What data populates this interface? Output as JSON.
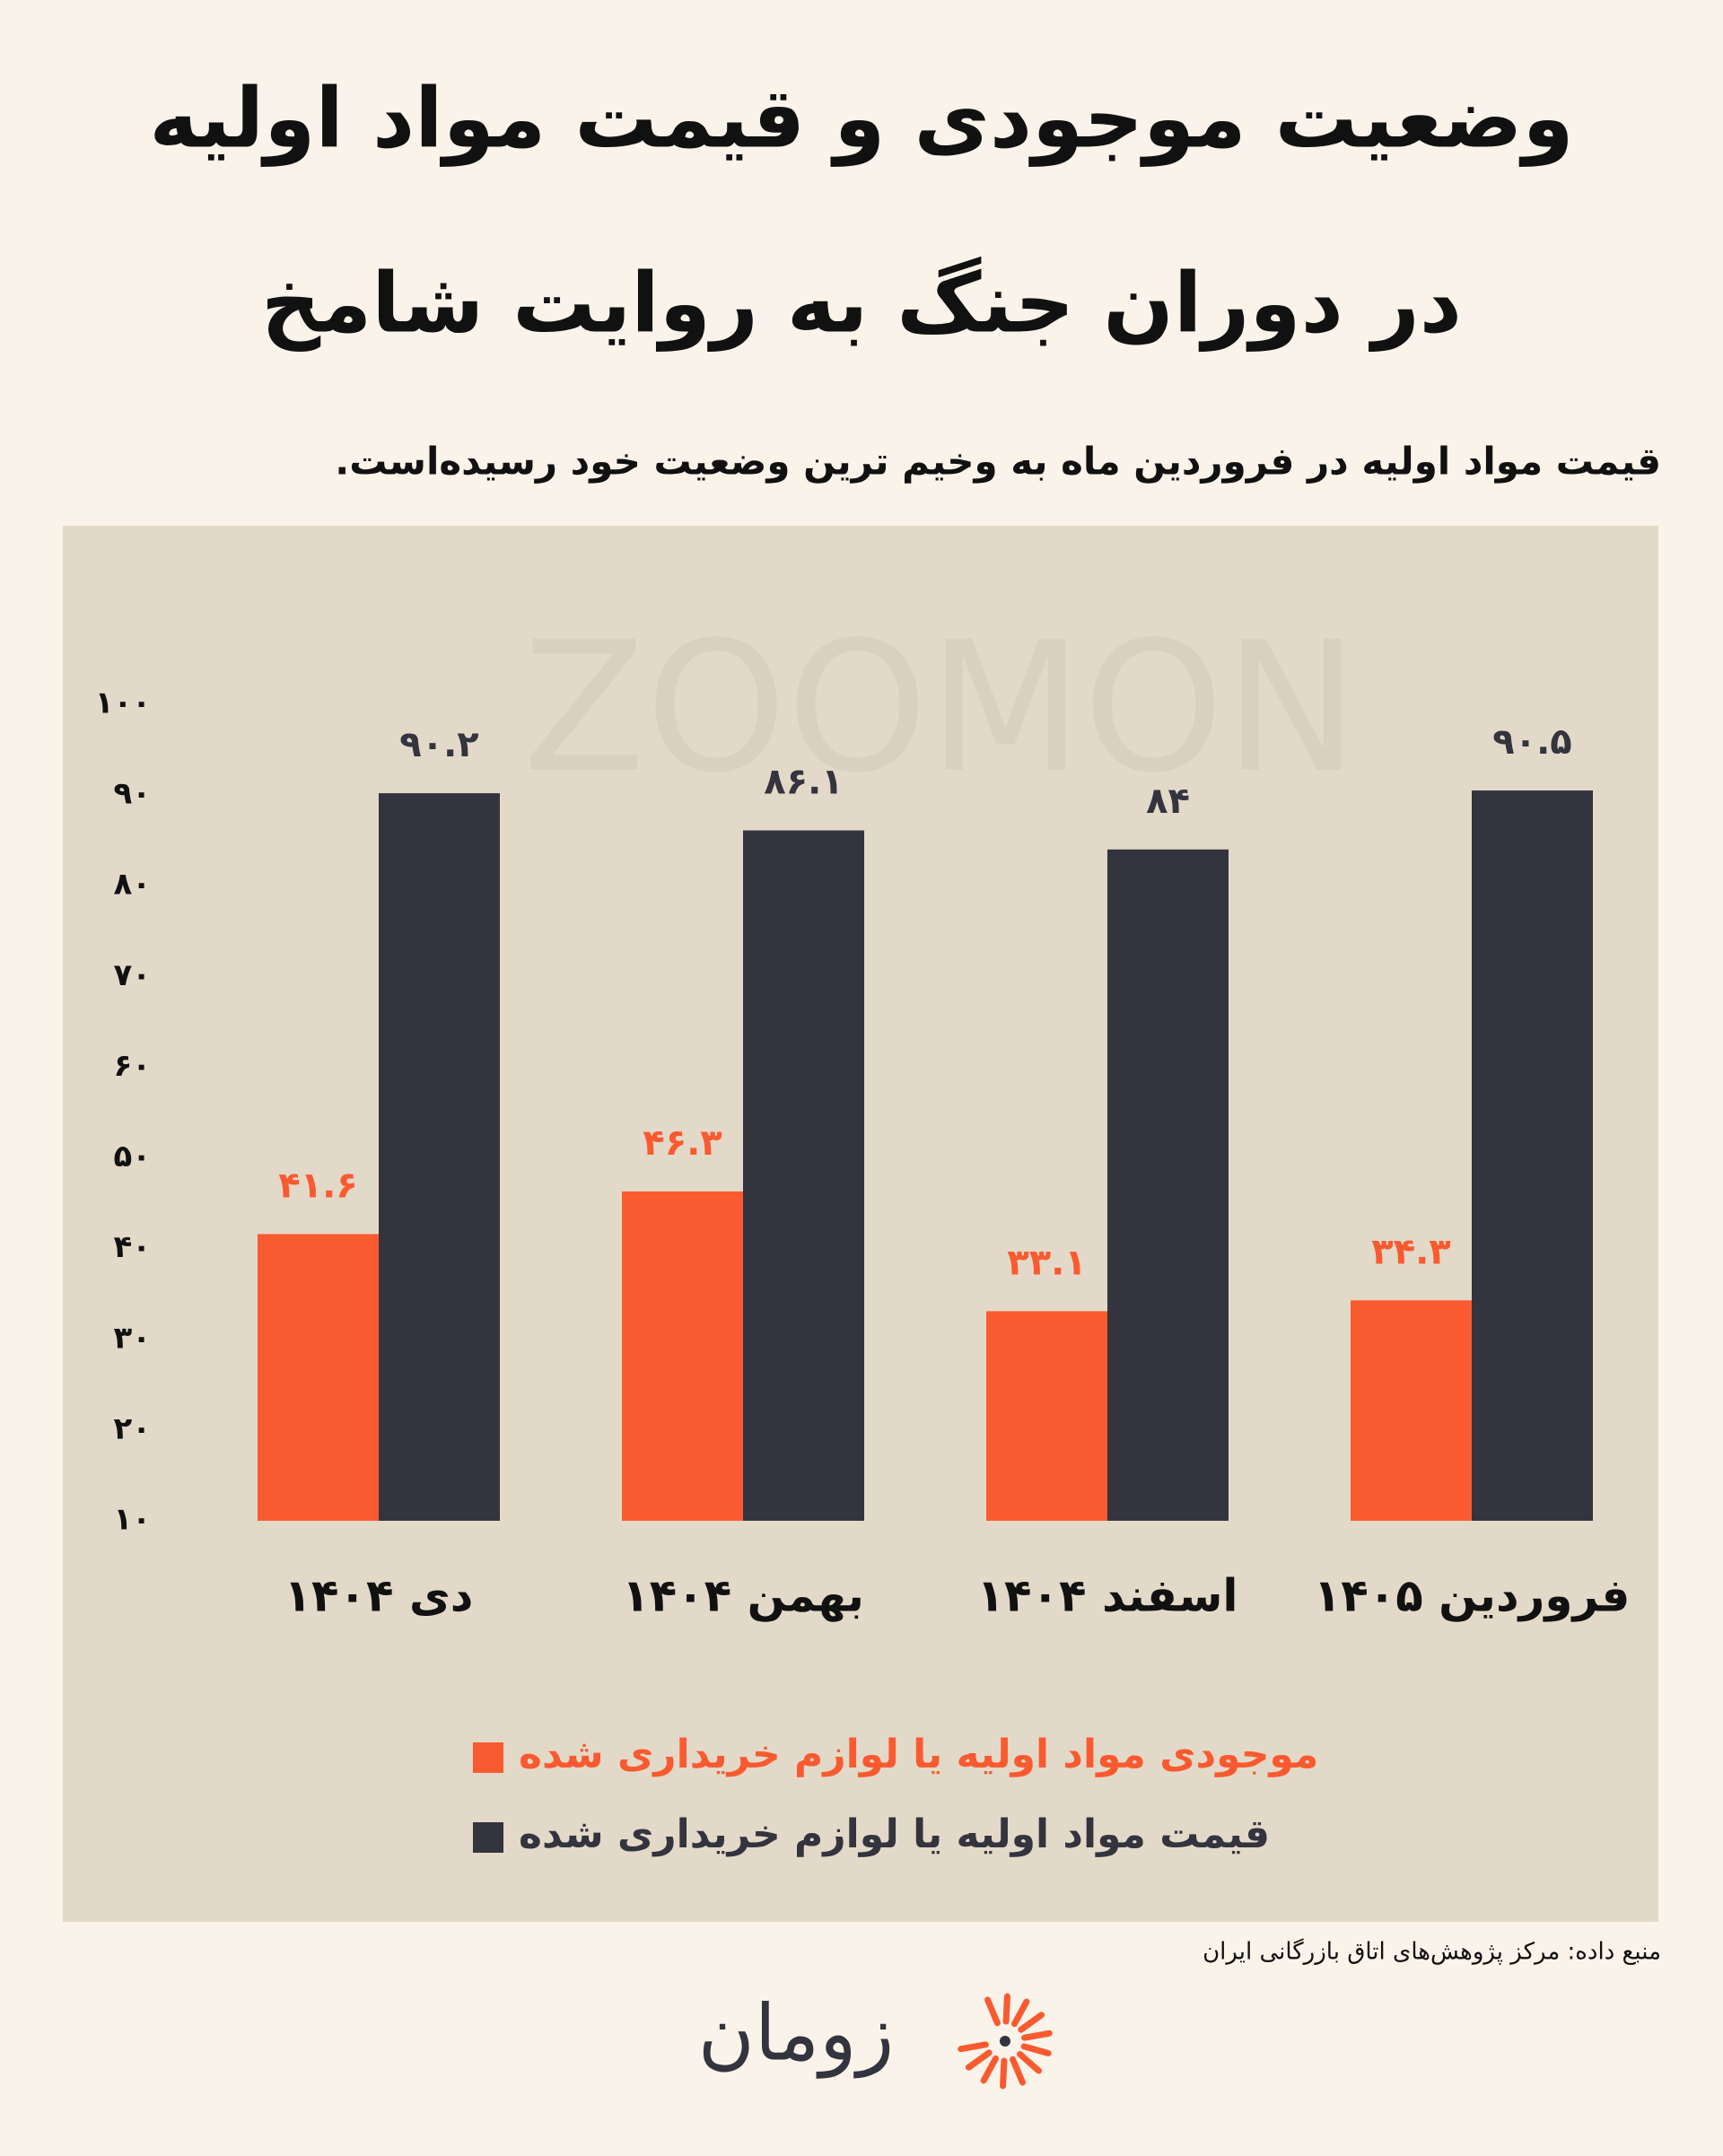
{
  "chart_data": {
    "type": "bar",
    "title": [
      "وضعیت موجودی و قیمت مواد اولیه",
      "در دوران جنگ به روایت شامخ"
    ],
    "subtitle": "قیمت مواد اولیه در فروردین ماه به وخیم ترین وضعیت خود رسیده‌است.",
    "categories": [
      "دی ۱۴۰۴",
      "بهمن ۱۴۰۴",
      "اسفند ۱۴۰۴",
      "فروردین ۱۴۰۵"
    ],
    "series": [
      {
        "name": "موجودی مواد اولیه یا لوازم خریداری شده",
        "color": "#fa5a30",
        "values": [
          41.6,
          46.3,
          33.1,
          34.3
        ],
        "value_labels": [
          "۴۱.۶",
          "۴۶.۳",
          "۳۳.۱",
          "۳۴.۳"
        ]
      },
      {
        "name": "قیمت مواد اولیه یا لوازم خریداری شده",
        "color": "#34343f",
        "values": [
          90.2,
          86.1,
          84,
          90.5
        ],
        "value_labels": [
          "۹۰.۲",
          "۸۶.۱",
          "۸۴",
          "۹۰.۵"
        ]
      }
    ],
    "ylim": [
      10,
      100
    ],
    "yticks": [
      {
        "value": 10,
        "label": "۱۰"
      },
      {
        "value": 20,
        "label": "۲۰"
      },
      {
        "value": 30,
        "label": "۳۰"
      },
      {
        "value": 40,
        "label": "۴۰"
      },
      {
        "value": 50,
        "label": "۵۰"
      },
      {
        "value": 60,
        "label": "۶۰"
      },
      {
        "value": 70,
        "label": "۷۰"
      },
      {
        "value": 80,
        "label": "۸۰"
      },
      {
        "value": 90,
        "label": "۹۰"
      },
      {
        "value": 100,
        "label": "۱۰۰"
      }
    ],
    "grid": false,
    "legend": "bottom",
    "source": "منبع داده: مرکز پژوهش‌های اتاق بازرگانی ایران"
  },
  "watermark": "ZOOMON",
  "logo": "زومان"
}
